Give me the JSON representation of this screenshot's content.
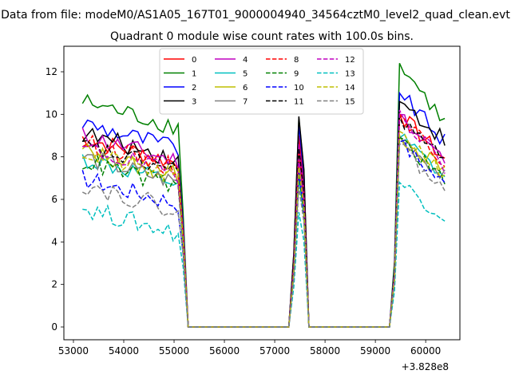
{
  "figure": {
    "suptitle": "Data from file: modeM0/AS1A05_167T01_9000004940_34564cztM0_level2_quad_clean.evt",
    "title": "Quadrant 0 module wise count rates with 100.0s bins.",
    "x_offset_label": "+3.828e8"
  },
  "chart_data": {
    "type": "line",
    "title": "Quadrant 0 module wise count rates with 100.0s bins.",
    "xlabel": "",
    "ylabel": "",
    "x_offset": 382800000,
    "xlim": [
      52810,
      60680
    ],
    "ylim": [
      -0.6,
      13.2
    ],
    "xticks": [
      53000,
      54000,
      55000,
      56000,
      57000,
      58000,
      59000,
      60000
    ],
    "yticks": [
      0,
      2,
      4,
      6,
      8,
      10,
      12
    ],
    "grid": false,
    "legend": {
      "location": "top-center",
      "columns": 4
    },
    "segments": {
      "seg1": {
        "x_start": 53180,
        "x_end": 55080,
        "step": 100,
        "drop_x": [
          55180,
          55280
        ]
      },
      "zero1": [
        55280,
        57280
      ],
      "seg2": {
        "x": [
          57280,
          57380,
          57480,
          57580,
          57680
        ]
      },
      "zero2": [
        57680,
        59280
      ],
      "seg3": {
        "x_start": 59280,
        "x_end": 60380,
        "step": 100
      }
    },
    "series": [
      {
        "name": "0",
        "color": "#ff0000",
        "dash": "solid",
        "base": 8.9,
        "bump": 9.0,
        "peak": 10.0,
        "end": 7.9
      },
      {
        "name": "1",
        "color": "#008000",
        "dash": "solid",
        "base": 10.6,
        "bump": 9.8,
        "peak": 12.4,
        "end": 9.6
      },
      {
        "name": "2",
        "color": "#0000ff",
        "dash": "solid",
        "base": 9.6,
        "bump": 9.5,
        "peak": 11.0,
        "end": 8.7
      },
      {
        "name": "3",
        "color": "#000000",
        "dash": "solid",
        "base": 9.1,
        "bump": 9.9,
        "peak": 10.6,
        "end": 8.8
      },
      {
        "name": "4",
        "color": "#bf00bf",
        "dash": "solid",
        "base": 9.0,
        "bump": 8.6,
        "peak": 10.0,
        "end": 7.8
      },
      {
        "name": "5",
        "color": "#00bfbf",
        "dash": "solid",
        "base": 7.9,
        "bump": 7.0,
        "peak": 8.9,
        "end": 7.0
      },
      {
        "name": "6",
        "color": "#bfbf00",
        "dash": "solid",
        "base": 8.3,
        "bump": 7.8,
        "peak": 9.0,
        "end": 7.3
      },
      {
        "name": "7",
        "color": "#808080",
        "dash": "solid",
        "base": 8.0,
        "bump": 7.6,
        "peak": 9.0,
        "end": 7.0
      },
      {
        "name": "8",
        "color": "#ff0000",
        "dash": "dashed",
        "base": 8.7,
        "bump": 8.2,
        "peak": 10.0,
        "end": 7.8
      },
      {
        "name": "9",
        "color": "#008000",
        "dash": "dashed",
        "base": 7.8,
        "bump": 7.2,
        "peak": 8.9,
        "end": 6.8
      },
      {
        "name": "10",
        "color": "#0000ff",
        "dash": "dashed",
        "base": 7.0,
        "bump": 7.3,
        "peak": 8.7,
        "end": 6.7
      },
      {
        "name": "11",
        "color": "#000000",
        "dash": "dashed",
        "base": 8.5,
        "bump": 8.4,
        "peak": 9.9,
        "end": 7.7
      },
      {
        "name": "12",
        "color": "#bf00bf",
        "dash": "dashed",
        "base": 8.4,
        "bump": 7.9,
        "peak": 10.2,
        "end": 7.6
      },
      {
        "name": "13",
        "color": "#00bfbf",
        "dash": "dashed",
        "base": 5.6,
        "bump": 5.4,
        "peak": 6.8,
        "end": 5.2
      },
      {
        "name": "14",
        "color": "#bfbf00",
        "dash": "dashed",
        "base": 8.2,
        "bump": 7.5,
        "peak": 9.2,
        "end": 7.2
      },
      {
        "name": "15",
        "color": "#808080",
        "dash": "dashed",
        "base": 6.7,
        "bump": 6.6,
        "peak": 8.6,
        "end": 6.3
      }
    ]
  }
}
